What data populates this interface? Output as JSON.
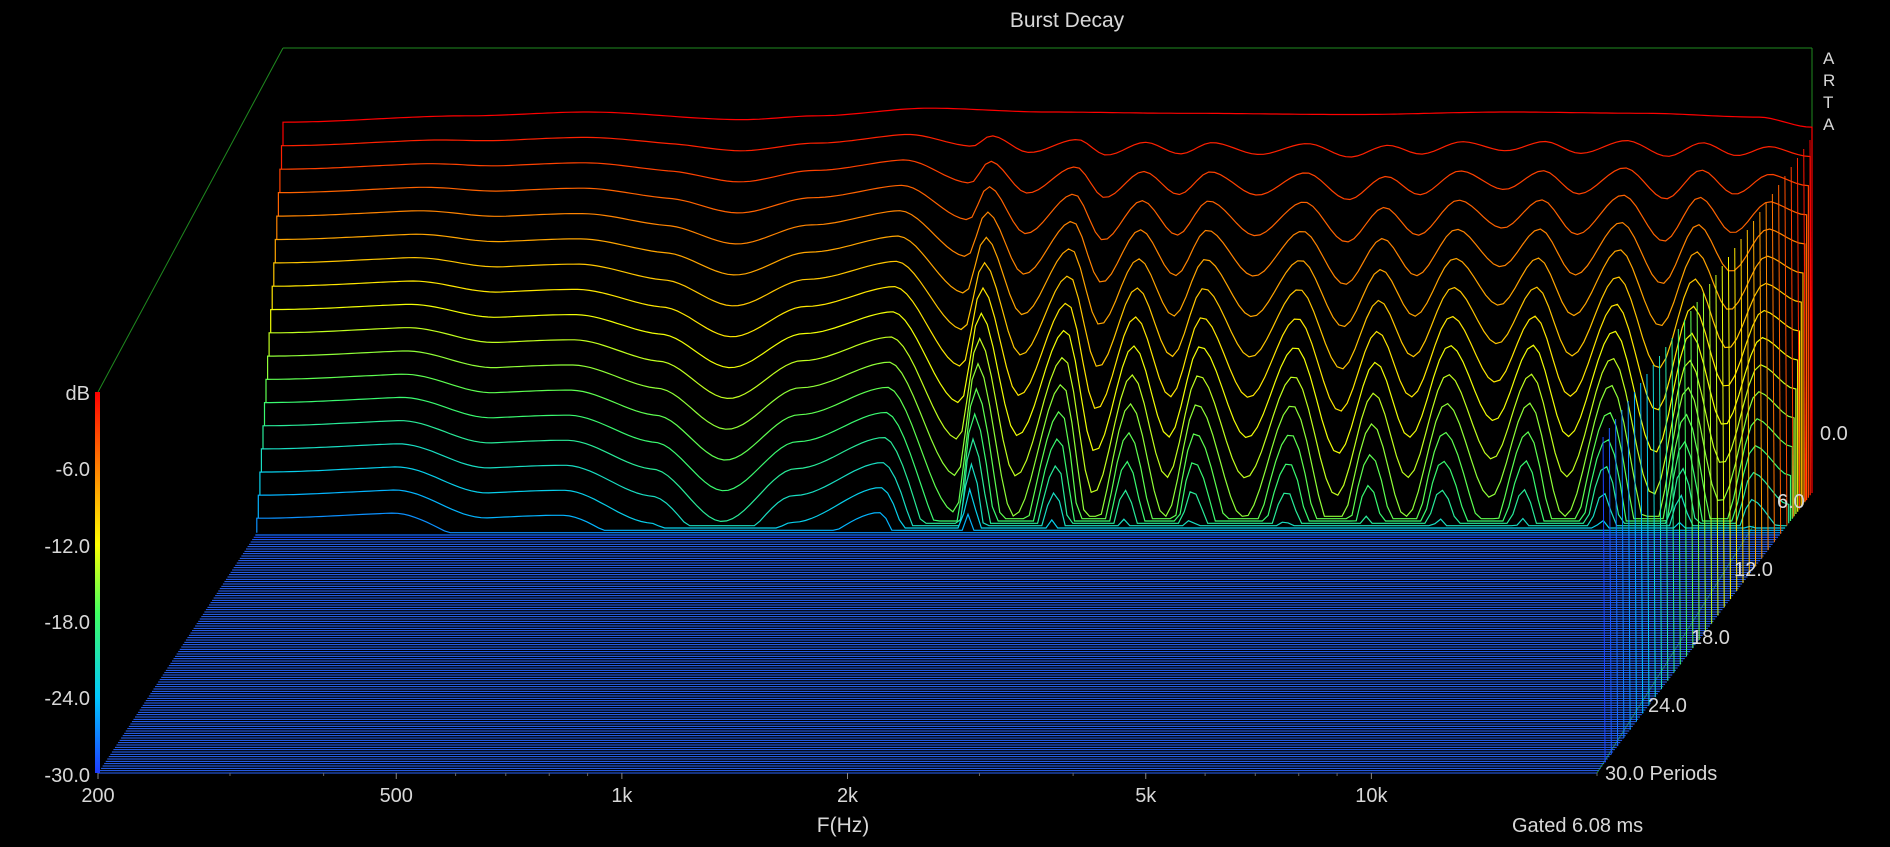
{
  "chart_data": {
    "type": "waterfall",
    "title": "Burst Decay",
    "brand": "ARTA",
    "xlabel": "F(Hz)",
    "x_scale": "log",
    "xlim": [
      200,
      20000
    ],
    "x_ticks": [
      {
        "value": 200,
        "label": "200"
      },
      {
        "value": 500,
        "label": "500"
      },
      {
        "value": 1000,
        "label": "1k"
      },
      {
        "value": 2000,
        "label": "2k"
      },
      {
        "value": 5000,
        "label": "5k"
      },
      {
        "value": 10000,
        "label": "10k"
      }
    ],
    "z_unit": "dB",
    "zlim": [
      -30,
      0
    ],
    "z_ticks": [
      "-6.0",
      "-12.0",
      "-18.0",
      "-24.0",
      "-30.0"
    ],
    "time_unit": "Periods",
    "tlim": [
      0,
      30
    ],
    "t_ticks": [
      "0.0",
      "6.0",
      "12.0",
      "18.0",
      "24.0",
      "30.0"
    ],
    "gate_note": "Gated 6.08 ms",
    "colormap": [
      "#1e3cff",
      "#00c8ff",
      "#40ff60",
      "#ffff00",
      "#ff8000",
      "#ff0000"
    ],
    "grid": false,
    "slices_visible": 20,
    "slices_total": 120,
    "decay_profile": {
      "description": "decay rate (dB per period) vs frequency, 200 Hz to 20 kHz",
      "freq": [
        200,
        300,
        400,
        500,
        650,
        800,
        1000,
        1300,
        1600,
        1700,
        1900,
        2200,
        2400,
        2700,
        3000,
        3300,
        3800,
        4400,
        5000,
        5600,
        6200,
        7000,
        8000,
        9000,
        10000,
        11500,
        13000,
        14500,
        16000,
        18000,
        20000
      ],
      "rate": [
        1.1,
        1.1,
        1.2,
        1.2,
        1.3,
        1.5,
        1.3,
        1.2,
        1.8,
        1.2,
        2.0,
        1.3,
        2.1,
        1.4,
        2.0,
        1.4,
        2.0,
        1.4,
        2.1,
        1.5,
        2.0,
        1.4,
        1.9,
        1.4,
        2.0,
        1.3,
        2.1,
        1.3,
        1.9,
        1.3,
        1.4
      ]
    },
    "level_profile": {
      "description": "initial level offset (dB) vs frequency",
      "freq": [
        200,
        350,
        500,
        800,
        1000,
        1400,
        2000,
        3000,
        5000,
        8000,
        12000,
        17000,
        20000
      ],
      "db": [
        -0.8,
        -0.3,
        0,
        -0.6,
        -0.3,
        0.3,
        0,
        -0.1,
        -0.2,
        0,
        -0.1,
        -0.4,
        -1.2
      ]
    }
  }
}
